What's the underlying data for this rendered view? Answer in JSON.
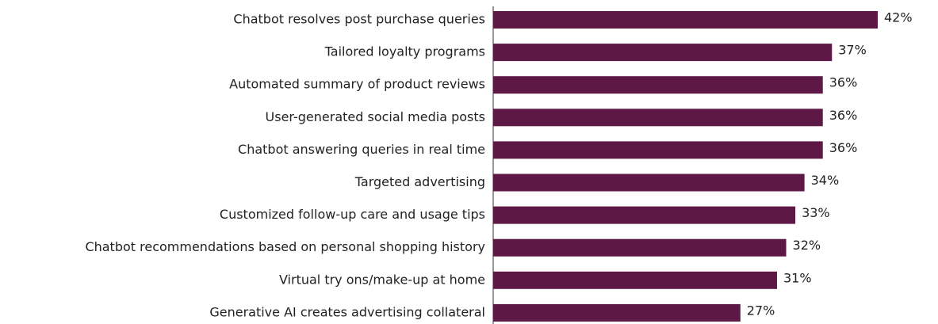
{
  "chart_data": {
    "type": "barh",
    "categories": [
      "Chatbot resolves post purchase queries",
      "Tailored loyalty programs",
      "Automated summary of product reviews",
      "User-generated social media posts",
      "Chatbot answering queries in real time",
      "Targeted advertising",
      "Customized follow-up care and usage tips",
      "Chatbot recommendations based on personal shopping history",
      "Virtual try ons/make-up at home",
      "Generative AI creates advertising collateral"
    ],
    "values": [
      42,
      37,
      36,
      36,
      36,
      34,
      33,
      32,
      31,
      27
    ],
    "value_labels": [
      "42%",
      "37%",
      "36%",
      "36%",
      "36%",
      "34%",
      "33%",
      "32%",
      "31%",
      "27%"
    ],
    "color": "#5e1845",
    "xlim": [
      0,
      42
    ]
  }
}
